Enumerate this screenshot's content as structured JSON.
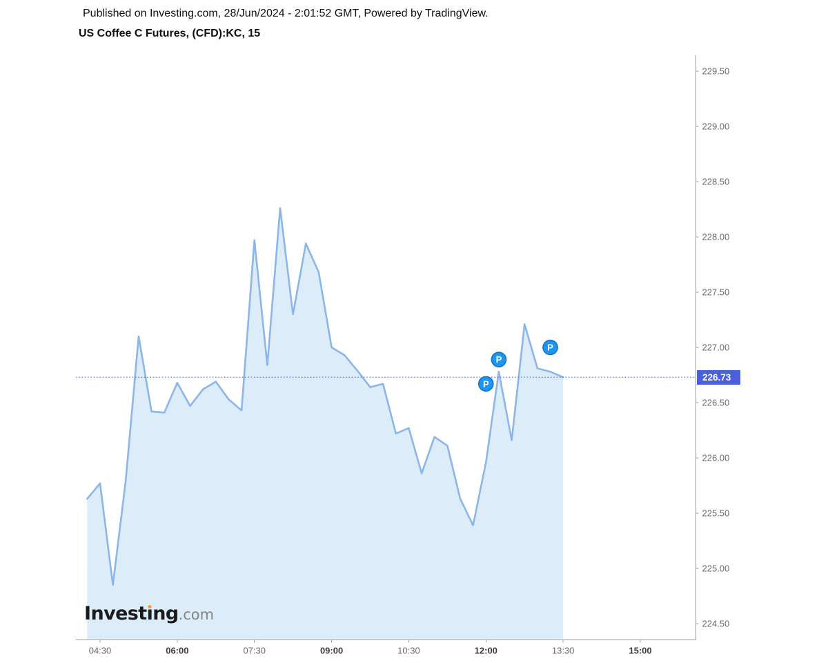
{
  "header": {
    "published": "Published on Investing.com, 28/Jun/2024 - 2:01:52 GMT, Powered by TradingView."
  },
  "title": "US Coffee C Futures, (CFD):KC, 15",
  "logo": {
    "word_start": "Invest",
    "dotless_i": "ı",
    "word_end": "ng",
    "suffix": ".com"
  },
  "price_scale": {
    "current_label": "226.73"
  },
  "chart_data": {
    "type": "area",
    "title": "US Coffee C Futures, (CFD):KC, 15",
    "interval_minutes": 15,
    "x": [
      "04:15",
      "04:30",
      "04:45",
      "05:00",
      "05:15",
      "05:30",
      "05:45",
      "06:00",
      "06:15",
      "06:30",
      "06:45",
      "07:00",
      "07:15",
      "07:30",
      "07:45",
      "08:00",
      "08:15",
      "08:30",
      "08:45",
      "09:00",
      "09:15",
      "09:30",
      "09:45",
      "10:00",
      "10:15",
      "10:30",
      "10:45",
      "11:00",
      "11:15",
      "11:30",
      "11:45",
      "12:00",
      "12:15",
      "12:30",
      "12:45",
      "13:00",
      "13:15",
      "13:30"
    ],
    "values": [
      225.63,
      225.77,
      224.85,
      225.8,
      227.1,
      226.42,
      226.41,
      226.68,
      226.47,
      226.62,
      226.69,
      226.53,
      226.43,
      227.97,
      226.84,
      228.26,
      227.3,
      227.94,
      227.68,
      227.0,
      226.93,
      226.79,
      226.64,
      226.67,
      226.22,
      226.27,
      225.86,
      226.19,
      226.11,
      225.63,
      225.39,
      225.96,
      226.78,
      226.16,
      227.21,
      226.81,
      226.78,
      226.73
    ],
    "current_price": 226.73,
    "ylim": [
      224.36,
      229.64
    ],
    "xlim": [
      "04:02",
      "16:04"
    ],
    "grid": false,
    "legend": "none",
    "y_ticks": [
      229.5,
      229.0,
      228.5,
      228.0,
      227.5,
      227.0,
      226.5,
      226.0,
      225.5,
      225.0,
      224.5
    ],
    "x_ticks": [
      {
        "label": "04:30",
        "bold": false
      },
      {
        "label": "06:00",
        "bold": true
      },
      {
        "label": "07:30",
        "bold": false
      },
      {
        "label": "09:00",
        "bold": true
      },
      {
        "label": "10:30",
        "bold": false
      },
      {
        "label": "12:00",
        "bold": true
      },
      {
        "label": "13:30",
        "bold": false
      },
      {
        "label": "15:00",
        "bold": true
      }
    ],
    "markers": [
      {
        "label": "P",
        "time": "12:00",
        "price": 226.67
      },
      {
        "label": "P",
        "time": "12:15",
        "price": 226.89
      },
      {
        "label": "P",
        "time": "13:15",
        "price": 227.0
      }
    ],
    "colors": {
      "line": "#8cb6e9",
      "fill": "#dcecf8",
      "price_line": "#4a5fd9",
      "price_badge_bg": "#4a5fd9",
      "price_badge_text": "#ffffff",
      "marker_fill": "#1e95f2",
      "marker_stroke": "#1173c9",
      "marker_text": "#ffffff",
      "axis": "#999999",
      "tick_label": "#6b6b6b",
      "tick_label_bold": "#3c3c3c",
      "logo_dot": "#f4a01c"
    }
  }
}
